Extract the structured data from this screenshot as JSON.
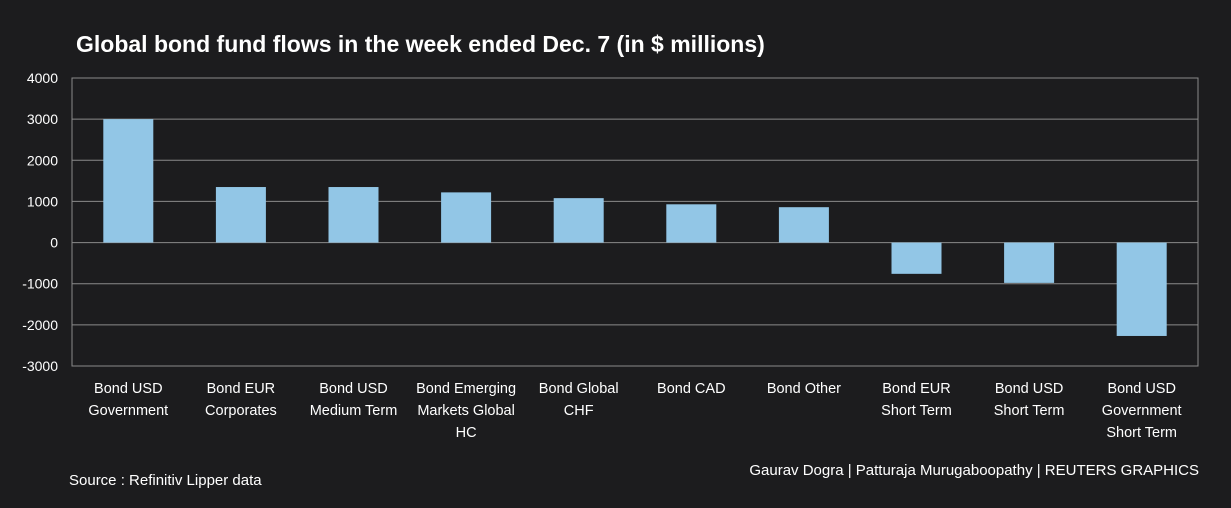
{
  "title": "Global bond fund flows in the week ended Dec. 7 (in $ millions)",
  "source": "Source : Refinitiv Lipper data",
  "credit": "Gaurav Dogra | Patturaja Murugaboopathy | REUTERS GRAPHICS",
  "colors": {
    "background": "#1c1c1e",
    "bar": "#92c6e6",
    "grid": "#8a8a8a",
    "text": "#ffffff"
  },
  "chart_data": {
    "type": "bar",
    "title": "Global bond fund flows in the week ended Dec. 7 (in $ millions)",
    "categories": [
      [
        "Bond USD",
        "Government"
      ],
      [
        "Bond EUR",
        "Corporates"
      ],
      [
        "Bond USD",
        "Medium Term"
      ],
      [
        "Bond Emerging",
        "Markets Global",
        "HC"
      ],
      [
        "Bond Global",
        "CHF"
      ],
      [
        "Bond CAD"
      ],
      [
        "Bond Other"
      ],
      [
        "Bond EUR",
        "Short Term"
      ],
      [
        "Bond USD",
        "Short Term"
      ],
      [
        "Bond USD",
        "Government",
        "Short Term"
      ]
    ],
    "values": [
      3000,
      1350,
      1350,
      1220,
      1080,
      930,
      860,
      -760,
      -980,
      -2270
    ],
    "ylim": [
      -3000,
      4000
    ],
    "yticks": [
      4000,
      3000,
      2000,
      1000,
      0,
      -1000,
      -2000,
      -3000
    ],
    "grid": true,
    "legend": "none"
  }
}
